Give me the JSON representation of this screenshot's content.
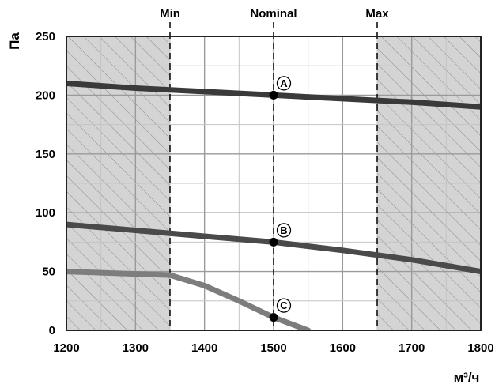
{
  "chart_data": {
    "type": "line",
    "xlabel": "м³/ч",
    "ylabel": "Па",
    "xlim": [
      1200,
      1800
    ],
    "ylim": [
      0,
      250
    ],
    "x_ticks": [
      1200,
      1300,
      1400,
      1500,
      1600,
      1700,
      1800
    ],
    "y_ticks": [
      0,
      50,
      100,
      150,
      200,
      250
    ],
    "grid": true,
    "minor_x_step": 50,
    "minor_y_step": 25,
    "shaded_regions": [
      {
        "from": 1200,
        "to": 1350
      },
      {
        "from": 1650,
        "to": 1800
      }
    ],
    "reference_lines": [
      {
        "x": 1350,
        "label": "Min"
      },
      {
        "x": 1500,
        "label": "Nominal"
      },
      {
        "x": 1650,
        "label": "Max"
      }
    ],
    "series": [
      {
        "color": "#3a3a3a",
        "x": [
          1200,
          1300,
          1400,
          1500,
          1600,
          1700,
          1800
        ],
        "y": [
          210,
          206,
          203,
          200,
          197,
          194,
          190
        ]
      },
      {
        "color": "#4a4a4a",
        "x": [
          1200,
          1300,
          1400,
          1500,
          1600,
          1700,
          1800
        ],
        "y": [
          90,
          85,
          80,
          75,
          68,
          60,
          50
        ]
      },
      {
        "color": "#7d7d7d",
        "x": [
          1200,
          1300,
          1350,
          1400,
          1450,
          1500,
          1550
        ],
        "y": [
          50,
          48,
          47,
          38,
          25,
          11,
          0
        ]
      }
    ],
    "points": [
      {
        "label": "A",
        "x": 1500,
        "y": 200
      },
      {
        "label": "B",
        "x": 1500,
        "y": 75
      },
      {
        "label": "C",
        "x": 1500,
        "y": 11
      }
    ]
  }
}
